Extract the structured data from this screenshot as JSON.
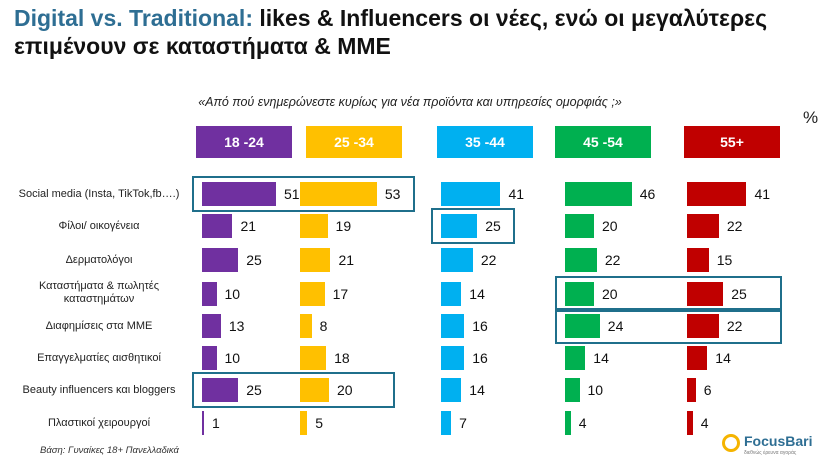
{
  "header": {
    "title_accent": "Digital vs. Traditional:",
    "title_rest_line1": " likes & Influencers οι νέες, ενώ οι μεγαλύτερες",
    "title_line2": "επιμένουν σε καταστήματα & ΜΜΕ",
    "subtitle": "«Από πού ενημερώνεστε κυρίως για νέα προϊόντα και υπηρεσίες ομορφιάς ;»",
    "unit": "%"
  },
  "footer": {
    "base_note": "Βάση: Γυναίκες 18+ Πανελλαδικά"
  },
  "logo": {
    "brand": "FocusBari",
    "tagline": "διεθνώς έρευνα αγοράς"
  },
  "chart_data": {
    "type": "bar",
    "orientation": "horizontal",
    "title": "Digital vs. Traditional: likes & Influencers οι νέες, ενώ οι μεγαλύτερες επιμένουν σε καταστήματα & ΜΜΕ",
    "unit": "%",
    "categories": [
      "Social media (Insta, TikTok,fb….)",
      "Φίλοι/ οικογένεια",
      "Δερματολόγοι",
      "Καταστήματα & πωλητές καταστημάτων",
      "Διαφημίσεις στα ΜΜΕ",
      "Επαγγελματίες αισθητικοί",
      "Beauty influencers και bloggers",
      "Πλαστικοί χειρουργοί"
    ],
    "series": [
      {
        "name": "18 -24",
        "color": "#7030a0",
        "values": [
          51,
          21,
          25,
          10,
          13,
          10,
          25,
          1
        ]
      },
      {
        "name": "25 -34",
        "color": "#ffc000",
        "values": [
          53,
          19,
          21,
          17,
          8,
          18,
          20,
          5
        ]
      },
      {
        "name": "35 -44",
        "color": "#00b0f0",
        "values": [
          41,
          25,
          22,
          14,
          16,
          16,
          14,
          7
        ]
      },
      {
        "name": "45 -54",
        "color": "#00b050",
        "values": [
          46,
          20,
          22,
          20,
          24,
          14,
          10,
          4
        ]
      },
      {
        "name": "55+",
        "color": "#c00000",
        "values": [
          41,
          22,
          15,
          25,
          22,
          14,
          6,
          4
        ]
      }
    ],
    "highlights": [
      {
        "category_index": 0,
        "series_indices": [
          0,
          1
        ]
      },
      {
        "category_index": 1,
        "series_indices": [
          2
        ]
      },
      {
        "category_index": 3,
        "series_indices": [
          3,
          4
        ]
      },
      {
        "category_index": 4,
        "series_indices": [
          3,
          4
        ]
      },
      {
        "category_index": 6,
        "series_indices": [
          0,
          1
        ]
      }
    ]
  }
}
